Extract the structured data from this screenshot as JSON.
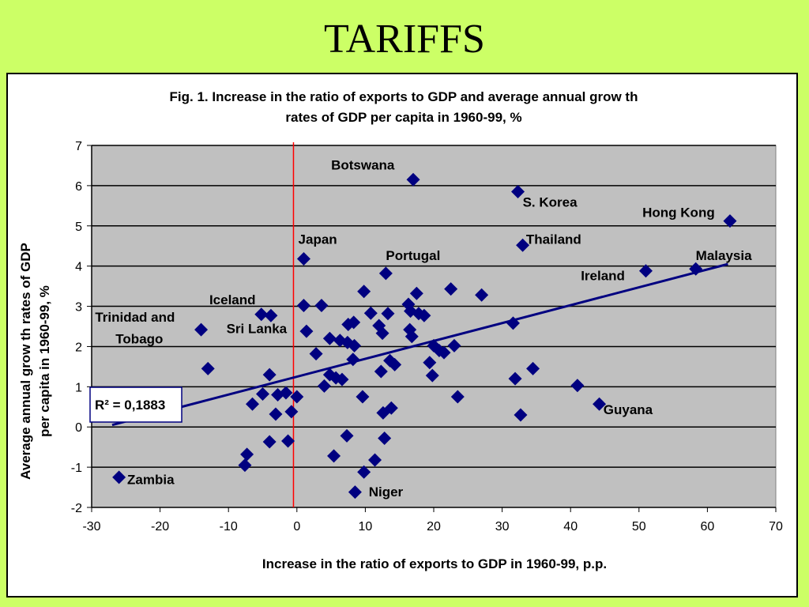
{
  "slide": {
    "title": "TARIFFS"
  },
  "colors": {
    "background": "#ccff66",
    "plot_area": "#c0c0c0",
    "marker": "#000080",
    "trendline": "#000080",
    "zero_line": "#ff0000"
  },
  "chart_data": {
    "type": "scatter",
    "title_lines": [
      "Fig. 1. Increase in the ratio of exports to GDP and average annual grow th",
      "rates of GDP per capita in 1960-99, %"
    ],
    "xlabel": "Increase in the ratio of exports to GDP in 1960-99, p.p.",
    "ylabel_lines": [
      "Average annual grow th rates of GDP",
      "per capita in 1960-99, %"
    ],
    "xlim": [
      -30,
      70
    ],
    "ylim": [
      -2,
      7
    ],
    "x_ticks": [
      "-30",
      "-20",
      "-10",
      "0",
      "10",
      "20",
      "30",
      "40",
      "50",
      "60",
      "70"
    ],
    "y_ticks": [
      "-2",
      "-1",
      "0",
      "1",
      "2",
      "3",
      "4",
      "5",
      "6",
      "7"
    ],
    "grid": "horizontal",
    "vertical_reference_x": -0.5,
    "trendline": {
      "x": [
        -27,
        63
      ],
      "y": [
        0.05,
        4.05
      ]
    },
    "r_squared_label": "R² = 0,1883",
    "points": [
      {
        "x": 17,
        "y": 6.15
      },
      {
        "x": 32.3,
        "y": 5.85
      },
      {
        "x": 63.3,
        "y": 5.12
      },
      {
        "x": 33,
        "y": 4.52
      },
      {
        "x": 1,
        "y": 4.18
      },
      {
        "x": 13,
        "y": 3.82
      },
      {
        "x": 51,
        "y": 3.88
      },
      {
        "x": 58.3,
        "y": 3.93
      },
      {
        "x": 9.8,
        "y": 3.37
      },
      {
        "x": 22.5,
        "y": 3.43
      },
      {
        "x": 27,
        "y": 3.28
      },
      {
        "x": 17.5,
        "y": 3.32
      },
      {
        "x": 1,
        "y": 3.02
      },
      {
        "x": 3.6,
        "y": 3.02
      },
      {
        "x": 16.3,
        "y": 3.05
      },
      {
        "x": -5.2,
        "y": 2.8
      },
      {
        "x": -3.8,
        "y": 2.77
      },
      {
        "x": 10.8,
        "y": 2.83
      },
      {
        "x": 13.3,
        "y": 2.82
      },
      {
        "x": 16.6,
        "y": 2.88
      },
      {
        "x": 17.8,
        "y": 2.82
      },
      {
        "x": 18.6,
        "y": 2.77
      },
      {
        "x": 31.6,
        "y": 2.58
      },
      {
        "x": 7.5,
        "y": 2.55
      },
      {
        "x": 8.3,
        "y": 2.6
      },
      {
        "x": 12,
        "y": 2.52
      },
      {
        "x": -14,
        "y": 2.42
      },
      {
        "x": 1.4,
        "y": 2.38
      },
      {
        "x": 12.5,
        "y": 2.33
      },
      {
        "x": 16.5,
        "y": 2.42
      },
      {
        "x": 16.8,
        "y": 2.25
      },
      {
        "x": 4.8,
        "y": 2.2
      },
      {
        "x": 6.3,
        "y": 2.15
      },
      {
        "x": 7.4,
        "y": 2.1
      },
      {
        "x": 8.4,
        "y": 2.02
      },
      {
        "x": 20,
        "y": 2.02
      },
      {
        "x": 20.8,
        "y": 1.9
      },
      {
        "x": 21.5,
        "y": 1.85
      },
      {
        "x": 23,
        "y": 2.02
      },
      {
        "x": 2.8,
        "y": 1.82
      },
      {
        "x": 8.2,
        "y": 1.68
      },
      {
        "x": 13.6,
        "y": 1.65
      },
      {
        "x": 14.3,
        "y": 1.55
      },
      {
        "x": 19.4,
        "y": 1.6
      },
      {
        "x": 12.3,
        "y": 1.38
      },
      {
        "x": 19.8,
        "y": 1.28
      },
      {
        "x": 34.5,
        "y": 1.45
      },
      {
        "x": -13,
        "y": 1.45
      },
      {
        "x": -4,
        "y": 1.3
      },
      {
        "x": 4.8,
        "y": 1.3
      },
      {
        "x": 5.7,
        "y": 1.22
      },
      {
        "x": 6.6,
        "y": 1.18
      },
      {
        "x": 31.9,
        "y": 1.2
      },
      {
        "x": 4,
        "y": 1.02
      },
      {
        "x": 41,
        "y": 1.03
      },
      {
        "x": -5,
        "y": 0.82
      },
      {
        "x": -2.8,
        "y": 0.8
      },
      {
        "x": -1.6,
        "y": 0.85
      },
      {
        "x": 0,
        "y": 0.75
      },
      {
        "x": 9.6,
        "y": 0.75
      },
      {
        "x": 23.5,
        "y": 0.75
      },
      {
        "x": -6.5,
        "y": 0.57
      },
      {
        "x": 44.2,
        "y": 0.57
      },
      {
        "x": -3.1,
        "y": 0.32
      },
      {
        "x": -0.8,
        "y": 0.38
      },
      {
        "x": 12.6,
        "y": 0.35
      },
      {
        "x": 13.8,
        "y": 0.47
      },
      {
        "x": 32.7,
        "y": 0.3
      },
      {
        "x": -1.3,
        "y": -0.35
      },
      {
        "x": -4,
        "y": -0.37
      },
      {
        "x": 7.3,
        "y": -0.22
      },
      {
        "x": 12.8,
        "y": -0.28
      },
      {
        "x": -7.3,
        "y": -0.68
      },
      {
        "x": 5.4,
        "y": -0.72
      },
      {
        "x": -7.6,
        "y": -0.95
      },
      {
        "x": 11.4,
        "y": -0.82
      },
      {
        "x": 9.8,
        "y": -1.12
      },
      {
        "x": -26,
        "y": -1.25
      },
      {
        "x": 8.5,
        "y": -1.62
      }
    ],
    "point_labels": [
      {
        "text": "Botswana",
        "x": 5,
        "y": 6.4
      },
      {
        "text": "S. Korea",
        "x": 33,
        "y": 5.48
      },
      {
        "text": "Hong Kong",
        "x": 50.5,
        "y": 5.22
      },
      {
        "text": "Thailand",
        "x": 33.5,
        "y": 4.55
      },
      {
        "text": "Japan",
        "x": 0.2,
        "y": 4.55
      },
      {
        "text": "Portugal",
        "x": 13,
        "y": 4.15
      },
      {
        "text": "Malaysia",
        "x": 58.3,
        "y": 4.15
      },
      {
        "text": "Ireland",
        "x": 41.5,
        "y": 3.65
      },
      {
        "text": "Iceland",
        "x": -12.8,
        "y": 3.05
      },
      {
        "text": "Trinidad and",
        "x": -29.5,
        "y": 2.62
      },
      {
        "text": "Sri Lanka",
        "x": -10.3,
        "y": 2.33
      },
      {
        "text": "Tobago",
        "x": -26.5,
        "y": 2.08
      },
      {
        "text": "Guyana",
        "x": 44.8,
        "y": 0.32
      },
      {
        "text": "Zambia",
        "x": -24.8,
        "y": -1.42
      },
      {
        "text": "Niger",
        "x": 10.5,
        "y": -1.72
      }
    ]
  }
}
